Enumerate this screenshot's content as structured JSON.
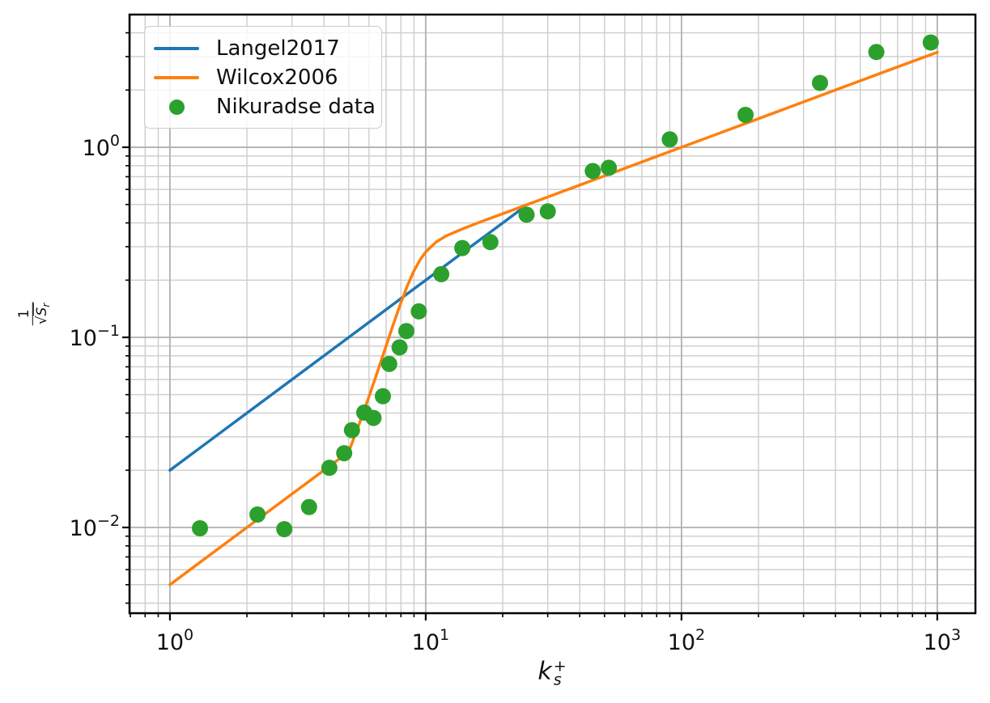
{
  "figure": {
    "background": "#ffffff"
  },
  "chart_data": {
    "type": "line+scatter",
    "title": "",
    "xscale": "log",
    "yscale": "log",
    "xlim": [
      0.695,
      1410
    ],
    "ylim": [
      0.00354,
      4.99
    ],
    "xlabel": "k_s^+",
    "ylabel": "1/sqrt(S_r)",
    "xlabel_parts": {
      "base": "k",
      "sub": "s",
      "sup": "+"
    },
    "ylabel_parts": {
      "numerator": "1",
      "radical": "√",
      "den_base": "S",
      "den_sub": "r"
    },
    "x_ticks": [
      {
        "value": 1,
        "base": "10",
        "exp": "0"
      },
      {
        "value": 10,
        "base": "10",
        "exp": "1"
      },
      {
        "value": 100,
        "base": "10",
        "exp": "2"
      },
      {
        "value": 1000,
        "base": "10",
        "exp": "3"
      }
    ],
    "y_ticks": [
      {
        "value": 1,
        "base": "10",
        "exp": "0"
      },
      {
        "value": 0.1,
        "base": "10",
        "exp": "−1"
      },
      {
        "value": 0.01,
        "base": "10",
        "exp": "−2"
      }
    ],
    "grid": {
      "which": "both",
      "major_color": "#b1b1b1",
      "minor_color": "#cdcdcd"
    },
    "axis_color": "#000000",
    "legend": {
      "location": "upper left",
      "entries": [
        "Langel2017",
        "Wilcox2006",
        "Nikuradse data"
      ]
    },
    "series": [
      {
        "name": "Langel2017",
        "kind": "line",
        "color": "#1f77b4",
        "linewidth": 3.5,
        "points": [
          [
            1,
            0.02
          ],
          [
            5,
            0.1
          ],
          [
            10,
            0.2
          ],
          [
            15,
            0.3
          ],
          [
            20,
            0.4
          ],
          [
            24,
            0.48
          ]
        ]
      },
      {
        "name": "Wilcox2006",
        "kind": "line",
        "color": "#ff7f0e",
        "linewidth": 3.5,
        "points": [
          [
            1,
            0.005
          ],
          [
            2,
            0.01
          ],
          [
            3,
            0.015
          ],
          [
            4,
            0.02
          ],
          [
            5,
            0.025
          ],
          [
            5.5,
            0.0352
          ],
          [
            6,
            0.0488
          ],
          [
            6.5,
            0.0669
          ],
          [
            7,
            0.0902
          ],
          [
            7.5,
            0.119
          ],
          [
            8,
            0.1525
          ],
          [
            8.5,
            0.1886
          ],
          [
            9,
            0.2239
          ],
          [
            9.5,
            0.2554
          ],
          [
            10,
            0.2814
          ],
          [
            11,
            0.318
          ],
          [
            12,
            0.3414
          ],
          [
            14,
            0.3735
          ],
          [
            17,
            0.4124
          ],
          [
            20,
            0.4472
          ],
          [
            25,
            0.5
          ],
          [
            30,
            0.5477
          ],
          [
            40,
            0.6325
          ],
          [
            50,
            0.7071
          ],
          [
            70,
            0.8367
          ],
          [
            100,
            1.0
          ],
          [
            150,
            1.2247
          ],
          [
            200,
            1.4142
          ],
          [
            300,
            1.7321
          ],
          [
            500,
            2.2361
          ],
          [
            700,
            2.6458
          ],
          [
            1000,
            3.1623
          ]
        ]
      },
      {
        "name": "Nikuradse data",
        "kind": "scatter",
        "color": "#2ca02c",
        "marker_radius": 10,
        "points": [
          [
            1.31,
            0.0099
          ],
          [
            2.2,
            0.0117
          ],
          [
            2.8,
            0.0098
          ],
          [
            3.5,
            0.0128
          ],
          [
            4.2,
            0.0206
          ],
          [
            4.8,
            0.0246
          ],
          [
            5.15,
            0.0325
          ],
          [
            5.75,
            0.0402
          ],
          [
            6.25,
            0.0377
          ],
          [
            6.8,
            0.049
          ],
          [
            7.2,
            0.0725
          ],
          [
            7.9,
            0.0886
          ],
          [
            8.4,
            0.108
          ],
          [
            9.4,
            0.137
          ],
          [
            11.5,
            0.215
          ],
          [
            13.9,
            0.295
          ],
          [
            17.9,
            0.317
          ],
          [
            24.8,
            0.442
          ],
          [
            30,
            0.46
          ],
          [
            45,
            0.75
          ],
          [
            52,
            0.78
          ],
          [
            90,
            1.1
          ],
          [
            178,
            1.48
          ],
          [
            348,
            2.18
          ],
          [
            578,
            3.17
          ],
          [
            943,
            3.56
          ]
        ]
      }
    ]
  }
}
